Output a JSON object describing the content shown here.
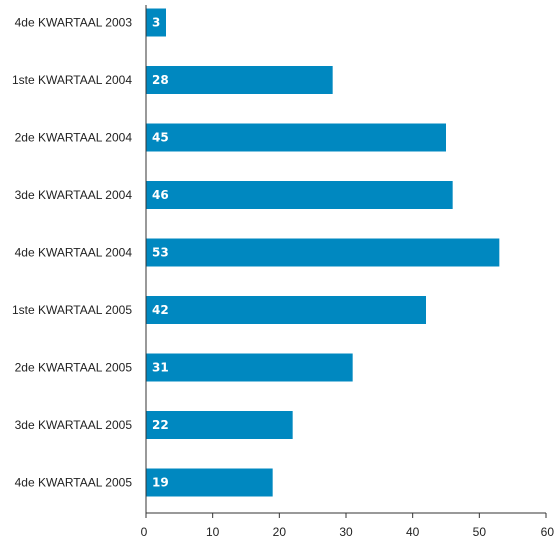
{
  "chart_data": {
    "type": "bar",
    "orientation": "horizontal",
    "categories": [
      "4de KWARTAAL 2003",
      "1ste KWARTAAL 2004",
      "2de KWARTAAL 2004",
      "3de KWARTAAL 2004",
      "4de KWARTAAL 2004",
      "1ste KWARTAAL 2005",
      "2de KWARTAAL 2005",
      "3de KWARTAAL 2005",
      "4de KWARTAAL 2005"
    ],
    "values": [
      3,
      28,
      45,
      46,
      53,
      42,
      31,
      22,
      19
    ],
    "value_labels": [
      "3",
      "28",
      "45",
      "46",
      "53",
      "42",
      "31",
      "22",
      "19"
    ],
    "title": "",
    "xlabel": "",
    "ylabel": "",
    "xlim": [
      0,
      60
    ],
    "xticks": [
      0,
      10,
      20,
      30,
      40,
      50,
      60
    ],
    "xtick_labels": [
      "0",
      "10",
      "20",
      "30",
      "40",
      "50",
      "60"
    ],
    "grid": false,
    "legend": "none",
    "colors": {
      "bar": "#0088c0",
      "axis": "#333333",
      "text": "#222222",
      "value_text": "#ffffff"
    }
  }
}
